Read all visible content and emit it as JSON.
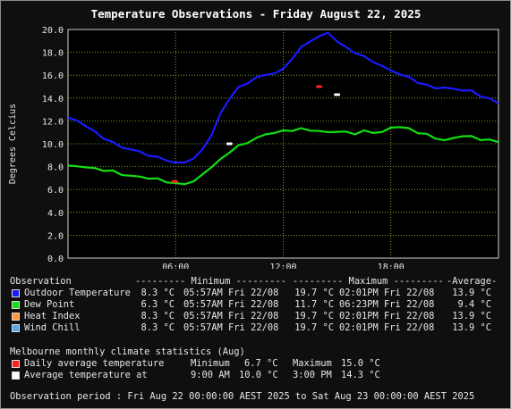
{
  "chart_data": {
    "type": "line",
    "title": "Temperature Observations - Friday August 22, 2025",
    "ylabel": "Degrees Celcius",
    "xlabel": "",
    "ylim": [
      0,
      20
    ],
    "y_ticks": [
      "0.0",
      "2.0",
      "4.0",
      "6.0",
      "8.0",
      "10.0",
      "12.0",
      "14.0",
      "16.0",
      "18.0",
      "20.0"
    ],
    "xlim_hours": [
      0,
      24
    ],
    "x_ticks": [
      {
        "hour": 6,
        "label": "06:00"
      },
      {
        "hour": 12,
        "label": "12:00"
      },
      {
        "hour": 18,
        "label": "18:00"
      }
    ],
    "grid": true,
    "series": [
      {
        "name": "Outdoor Temperature",
        "color": "#1a1aff",
        "x": [
          0,
          0.5,
          1,
          1.5,
          2,
          2.5,
          3,
          3.5,
          4,
          4.5,
          5,
          5.5,
          5.95,
          6.5,
          7,
          7.5,
          8,
          8.5,
          9,
          9.5,
          10,
          10.5,
          11,
          11.5,
          12,
          12.5,
          13,
          13.5,
          14,
          14.5,
          15,
          15.5,
          16,
          16.5,
          17,
          17.5,
          18,
          18.5,
          19,
          19.5,
          20,
          20.5,
          21,
          21.5,
          22,
          22.5,
          23,
          23.5,
          24
        ],
        "y": [
          12.3,
          12.0,
          11.6,
          11.0,
          10.5,
          10.1,
          9.7,
          9.5,
          9.3,
          9.0,
          8.8,
          8.6,
          8.3,
          8.4,
          8.7,
          9.5,
          10.8,
          12.6,
          14.0,
          14.9,
          15.3,
          15.8,
          16.0,
          16.2,
          16.5,
          17.5,
          18.4,
          19.0,
          19.4,
          19.7,
          19.0,
          18.4,
          18.0,
          17.6,
          17.2,
          16.8,
          16.4,
          16.1,
          15.8,
          15.4,
          15.1,
          14.9,
          14.9,
          14.8,
          14.7,
          14.6,
          14.2,
          13.9,
          13.6
        ]
      },
      {
        "name": "Dew Point",
        "color": "#11e011",
        "x": [
          0,
          0.5,
          1,
          1.5,
          2,
          2.5,
          3,
          3.5,
          4,
          4.5,
          5,
          5.5,
          5.95,
          6.5,
          7,
          7.5,
          8,
          8.5,
          9,
          9.5,
          10,
          10.5,
          11,
          11.5,
          12,
          12.5,
          13,
          13.5,
          14,
          14.5,
          15,
          15.5,
          16,
          16.5,
          17,
          17.5,
          18,
          18.5,
          19,
          19.5,
          20,
          20.5,
          21,
          21.5,
          22,
          22.5,
          23,
          23.5,
          24
        ],
        "y": [
          8.1,
          8.0,
          8.0,
          7.8,
          7.7,
          7.6,
          7.3,
          7.2,
          7.1,
          7.0,
          6.9,
          6.7,
          6.5,
          6.5,
          6.7,
          7.3,
          8.0,
          8.6,
          9.3,
          9.8,
          10.1,
          10.5,
          10.8,
          11.0,
          11.1,
          11.2,
          11.3,
          11.2,
          11.1,
          11.0,
          11.1,
          11.0,
          10.9,
          11.1,
          11.0,
          11.0,
          11.4,
          11.5,
          11.3,
          11.0,
          10.8,
          10.5,
          10.3,
          10.5,
          10.7,
          10.6,
          10.4,
          10.3,
          10.2
        ]
      }
    ],
    "points": [
      {
        "name": "Daily average temperature",
        "color": "#ff2020",
        "marks": [
          {
            "x": 5.95,
            "y": 6.7
          },
          {
            "x": 14.0,
            "y": 15.0
          }
        ]
      },
      {
        "name": "Average temperature at",
        "color": "#ffffff",
        "marks": [
          {
            "x": 9.0,
            "y": 10.0
          },
          {
            "x": 15.0,
            "y": 14.3
          }
        ]
      }
    ]
  },
  "summary": {
    "header": {
      "observation": "Observation",
      "minimum": "--------- Minimum ---------",
      "maximum": "--------- Maximum ---------",
      "average": "-Average-"
    },
    "rows": [
      {
        "label": "Outdoor Temperature",
        "color": "#1a1aff",
        "min": "8.3 °C",
        "min_time": "05:57AM Fri 22/08",
        "max": "19.7 °C",
        "max_time": "02:01PM Fri 22/08",
        "avg": "13.9 °C"
      },
      {
        "label": "Dew Point",
        "color": "#11e011",
        "min": "6.3 °C",
        "min_time": "05:57AM Fri 22/08",
        "max": "11.7 °C",
        "max_time": "06:23PM Fri 22/08",
        "avg": "9.4 °C"
      },
      {
        "label": "Heat Index",
        "color": "#ff9933",
        "min": "8.3 °C",
        "min_time": "05:57AM Fri 22/08",
        "max": "19.7 °C",
        "max_time": "02:01PM Fri 22/08",
        "avg": "13.9 °C"
      },
      {
        "label": "Wind Chill",
        "color": "#55aaee",
        "min": "8.3 °C",
        "min_time": "05:57AM Fri 22/08",
        "max": "19.7 °C",
        "max_time": "02:01PM Fri 22/08",
        "avg": "13.9 °C"
      }
    ]
  },
  "climate": {
    "title": "Melbourne monthly climate statistics (Aug)",
    "daily": {
      "label": "Daily average temperature",
      "color": "#ff2020",
      "min_label": "Minimum",
      "min": "6.7 °C",
      "max_label": "Maximum",
      "max": "15.0 °C"
    },
    "average": {
      "label": "Average temperature at",
      "color": "#ffffff",
      "t1": "9:00 AM",
      "v1": "10.0 °C",
      "t2": "3:00 PM",
      "v2": "14.3 °C"
    }
  },
  "period": "Observation period : Fri Aug 22 00:00:00 AEST 2025 to Sat Aug 23 00:00:00 AEST 2025"
}
